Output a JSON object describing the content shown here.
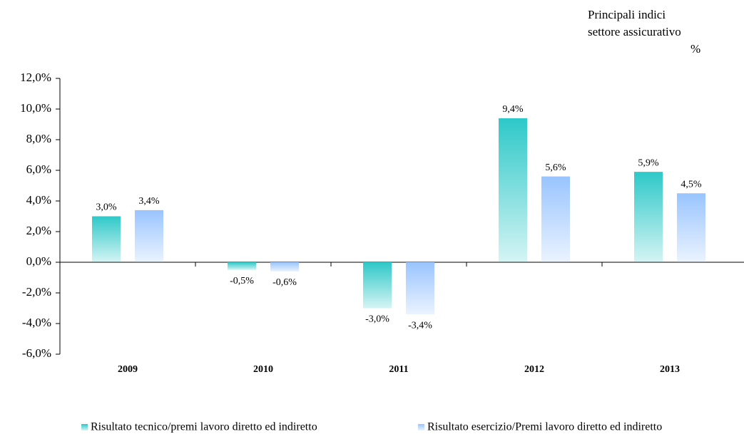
{
  "chart_data": {
    "type": "bar",
    "title": [
      "Principali indici",
      "settore assicurativo"
    ],
    "unit": "%",
    "categories": [
      "2009",
      "2010",
      "2011",
      "2012",
      "2013"
    ],
    "series": [
      {
        "name": "Risultato tecnico/premi lavoro diretto ed indiretto",
        "color": "#2ec8c8",
        "values": [
          3.0,
          -0.5,
          -3.0,
          9.4,
          5.9
        ],
        "value_labels": [
          "3,0%",
          "-0,5%",
          "-3,0%",
          "9,4%",
          "5,9%"
        ]
      },
      {
        "name": "Risultato esercizio/Premi lavoro diretto ed indiretto",
        "color": "#99c4ff",
        "values": [
          3.4,
          -0.6,
          -3.4,
          5.6,
          4.5
        ],
        "value_labels": [
          "3,4%",
          "-0,6%",
          "-3,4%",
          "5,6%",
          "4,5%"
        ]
      }
    ],
    "ylim": [
      -6,
      12
    ],
    "yticks": [
      {
        "value": -6,
        "label": "-6,0%"
      },
      {
        "value": -4,
        "label": "-4,0%"
      },
      {
        "value": -2,
        "label": "-2,0%"
      },
      {
        "value": 0,
        "label": "0,0%"
      },
      {
        "value": 2,
        "label": "2,0%"
      },
      {
        "value": 4,
        "label": "4,0%"
      },
      {
        "value": 6,
        "label": "6,0%"
      },
      {
        "value": 8,
        "label": "8,0%"
      },
      {
        "value": 10,
        "label": "10,0%"
      },
      {
        "value": 12,
        "label": "12,0%"
      }
    ],
    "grid": false,
    "legend": "bottom"
  }
}
